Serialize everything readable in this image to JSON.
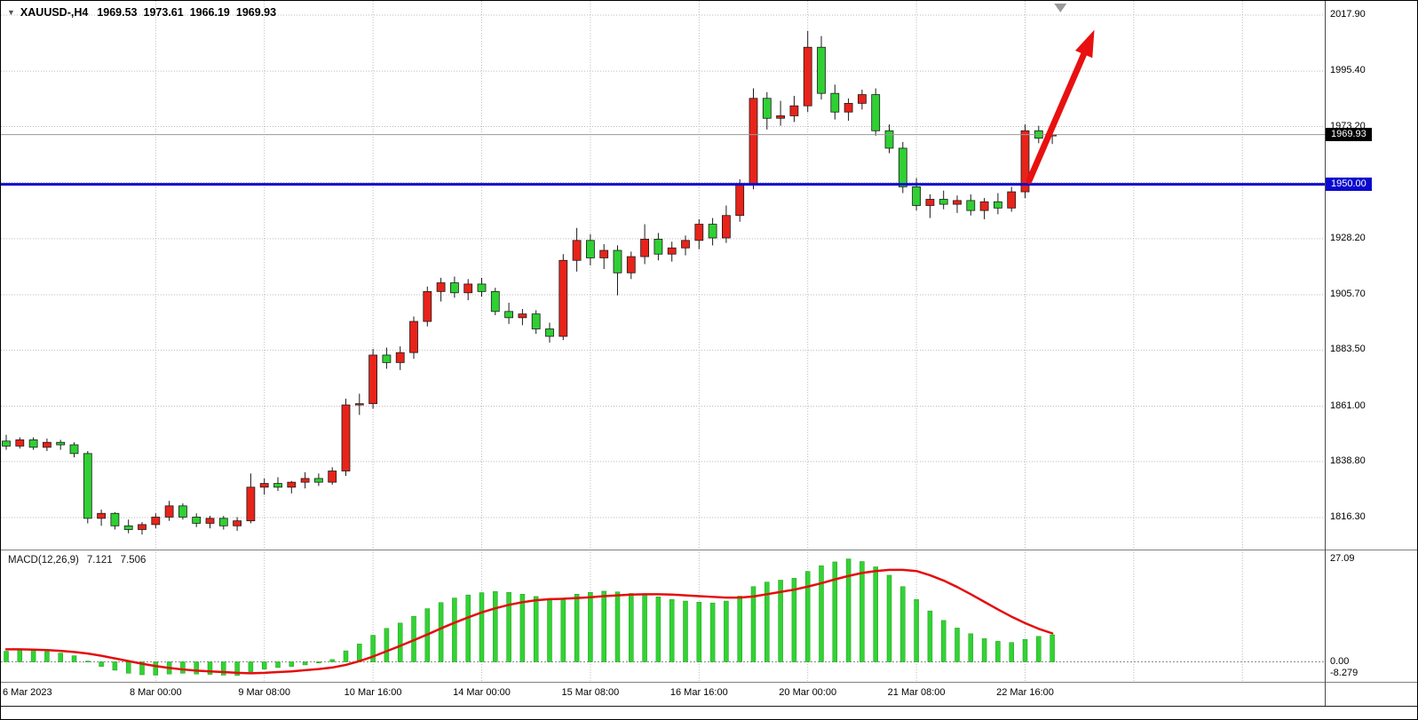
{
  "header": {
    "symbol": "XAUUSD-,H4",
    "open": "1969.53",
    "high": "1973.61",
    "low": "1966.19",
    "close": "1969.93"
  },
  "icons": {
    "symbol_dropdown": "▼"
  },
  "price_axis": {
    "bid_badge": {
      "text": "1969.93",
      "bg": "#000000",
      "price": 1969.93
    },
    "level_badge": {
      "text": "1950.00",
      "bg": "#0a0ace",
      "price": 1950.0
    }
  },
  "macd_panel": {
    "title": "MACD(12,26,9)",
    "main_value": "7.121",
    "signal_value": "7.506",
    "axis_max": "27.09",
    "axis_zero": "0.00",
    "axis_min": "-8.279"
  },
  "chart_data": {
    "type": "candlestick+macd",
    "symbol": "XAUUSD-",
    "timeframe": "H4",
    "colors": {
      "bull": "#e8231a",
      "bear": "#2fd033",
      "outline": "#1b1b1b",
      "grid": "#bbbbbb",
      "macd_histogram": "#33d235",
      "macd_histogram_edge": "#14a014",
      "macd_signal": "#e40d0d",
      "level_line": "#0a0ace",
      "bid_line": "#9a9a9a",
      "arrow": "#e81010"
    },
    "y_axis": {
      "ticks": [
        "2017.90",
        "1995.40",
        "1973.20",
        "1928.20",
        "1905.70",
        "1883.50",
        "1861.00",
        "1838.80",
        "1816.30"
      ],
      "extra_gridline": 1950.7
    },
    "x_axis": {
      "ticks": [
        {
          "label": "6 Mar 2023",
          "bar": 0
        },
        {
          "label": "8 Mar 00:00",
          "bar": 11
        },
        {
          "label": "9 Mar 08:00",
          "bar": 19
        },
        {
          "label": "10 Mar 16:00",
          "bar": 27
        },
        {
          "label": "14 Mar 00:00",
          "bar": 35
        },
        {
          "label": "15 Mar 08:00",
          "bar": 43
        },
        {
          "label": "16 Mar 16:00",
          "bar": 51
        },
        {
          "label": "20 Mar 00:00",
          "bar": 59
        },
        {
          "label": "21 Mar 08:00",
          "bar": 67
        },
        {
          "label": "22 Mar 16:00",
          "bar": 75
        }
      ],
      "extra_gridline_bars": [
        83,
        91
      ]
    },
    "candles_ohlc": [
      [
        1847,
        1849.5,
        1843.5,
        1845
      ],
      [
        1845,
        1848.5,
        1844,
        1847.5
      ],
      [
        1847.5,
        1848.5,
        1843.5,
        1844.5
      ],
      [
        1844.5,
        1848,
        1843,
        1846.5
      ],
      [
        1846.5,
        1847.5,
        1843.5,
        1845.5
      ],
      [
        1845.5,
        1846.5,
        1840.5,
        1842
      ],
      [
        1842,
        1843,
        1814,
        1816
      ],
      [
        1816,
        1819.5,
        1813,
        1818
      ],
      [
        1818,
        1818.5,
        1811.5,
        1813
      ],
      [
        1813,
        1815.5,
        1810,
        1811.5
      ],
      [
        1811.5,
        1814.5,
        1809.5,
        1813.5
      ],
      [
        1813.5,
        1818,
        1812,
        1816.5
      ],
      [
        1816.5,
        1823,
        1815,
        1821
      ],
      [
        1821,
        1822,
        1815.5,
        1816.5
      ],
      [
        1816.5,
        1818,
        1812.5,
        1814
      ],
      [
        1814,
        1817,
        1812,
        1816
      ],
      [
        1816,
        1817,
        1811.5,
        1813
      ],
      [
        1813,
        1816.5,
        1811,
        1815
      ],
      [
        1815,
        1834,
        1814,
        1828.5
      ],
      [
        1828.5,
        1832,
        1825.5,
        1830
      ],
      [
        1830,
        1832.5,
        1827,
        1828.5
      ],
      [
        1828.5,
        1831,
        1826,
        1830.5
      ],
      [
        1830.5,
        1834.5,
        1828,
        1832
      ],
      [
        1832,
        1834,
        1829,
        1830.5
      ],
      [
        1830.5,
        1836.5,
        1829.5,
        1835
      ],
      [
        1835,
        1864,
        1833,
        1861.5
      ],
      [
        1861.5,
        1866,
        1857.5,
        1862
      ],
      [
        1862,
        1884,
        1860,
        1881.5
      ],
      [
        1881.5,
        1884.5,
        1876,
        1878.5
      ],
      [
        1878.5,
        1885,
        1875.5,
        1882.5
      ],
      [
        1882.5,
        1897,
        1880,
        1895
      ],
      [
        1895,
        1909,
        1893,
        1907
      ],
      [
        1907,
        1912.5,
        1903,
        1910.5
      ],
      [
        1910.5,
        1913,
        1904.5,
        1906.5
      ],
      [
        1906.5,
        1912,
        1903.5,
        1910
      ],
      [
        1910,
        1912.5,
        1905,
        1907
      ],
      [
        1907,
        1908.5,
        1897.5,
        1899
      ],
      [
        1899,
        1902.5,
        1894,
        1896.5
      ],
      [
        1896.5,
        1900,
        1893.5,
        1898
      ],
      [
        1898,
        1899.5,
        1890,
        1892
      ],
      [
        1892,
        1894.5,
        1886.5,
        1889
      ],
      [
        1889,
        1922,
        1887.5,
        1919.5
      ],
      [
        1919.5,
        1932.5,
        1915,
        1927.5
      ],
      [
        1927.5,
        1930,
        1917.5,
        1920.5
      ],
      [
        1920.5,
        1926,
        1916,
        1923.5
      ],
      [
        1923.5,
        1925.5,
        1905.5,
        1914.5
      ],
      [
        1914.5,
        1923,
        1912,
        1921
      ],
      [
        1921,
        1934,
        1918,
        1928
      ],
      [
        1928,
        1930.5,
        1919.5,
        1922
      ],
      [
        1922,
        1927,
        1919,
        1924.5
      ],
      [
        1924.5,
        1929.5,
        1921.5,
        1927.5
      ],
      [
        1927.5,
        1936,
        1924,
        1934
      ],
      [
        1934,
        1936.5,
        1925.5,
        1928.5
      ],
      [
        1928.5,
        1941.5,
        1926.5,
        1937.5
      ],
      [
        1937.5,
        1952,
        1935,
        1950
      ],
      [
        1950,
        1988.5,
        1948,
        1984.5
      ],
      [
        1984.5,
        1987,
        1972,
        1976.5
      ],
      [
        1976.5,
        1983.5,
        1973.5,
        1977.5
      ],
      [
        1977.5,
        1985.5,
        1975,
        1981.5
      ],
      [
        1981.5,
        2011.5,
        1979,
        2005
      ],
      [
        2005,
        2009.5,
        1984,
        1986.5
      ],
      [
        1986.5,
        1990,
        1976,
        1979
      ],
      [
        1979,
        1984.5,
        1975.5,
        1982.5
      ],
      [
        1982.5,
        1988,
        1980,
        1986
      ],
      [
        1986,
        1988.5,
        1969.5,
        1971.5
      ],
      [
        1971.5,
        1974,
        1962.5,
        1964.5
      ],
      [
        1964.5,
        1967,
        1946.5,
        1949
      ],
      [
        1949,
        1952.5,
        1939.5,
        1941.5
      ],
      [
        1941.5,
        1946,
        1936.5,
        1944
      ],
      [
        1944,
        1947.5,
        1940,
        1942
      ],
      [
        1942,
        1945.5,
        1938.5,
        1943.5
      ],
      [
        1943.5,
        1946,
        1937.5,
        1939.5
      ],
      [
        1939.5,
        1944.5,
        1936,
        1943
      ],
      [
        1943,
        1946.5,
        1938,
        1940.5
      ],
      [
        1940.5,
        1949,
        1939,
        1947
      ],
      [
        1947,
        1974,
        1944.5,
        1971.5
      ],
      [
        1971.5,
        1973.5,
        1966.5,
        1968.5
      ],
      [
        1969.53,
        1973.61,
        1966.19,
        1969.93
      ]
    ],
    "macd": {
      "histogram": [
        2.8,
        3.1,
        3.0,
        2.7,
        2.3,
        1.6,
        0.2,
        -1.2,
        -2.2,
        -3.0,
        -3.4,
        -3.5,
        -3.2,
        -3.0,
        -3.2,
        -3.3,
        -3.5,
        -3.6,
        -2.6,
        -1.9,
        -1.5,
        -1.2,
        -0.8,
        -0.3,
        0.6,
        2.9,
        4.7,
        7.0,
        8.8,
        10.2,
        12.0,
        14.0,
        15.6,
        16.8,
        17.6,
        18.2,
        18.5,
        18.3,
        17.8,
        17.2,
        16.4,
        16.8,
        17.8,
        18.3,
        18.6,
        18.4,
        18.0,
        17.7,
        17.1,
        16.4,
        16.0,
        15.7,
        15.5,
        16.0,
        17.3,
        19.8,
        21.0,
        21.5,
        22.0,
        23.8,
        25.3,
        26.3,
        27.09,
        26.4,
        25.0,
        22.8,
        19.8,
        16.4,
        13.4,
        10.9,
        8.9,
        7.4,
        6.1,
        5.4,
        5.1,
        5.9,
        6.7,
        7.121
      ],
      "signal": [
        3.3,
        3.3,
        3.2,
        3.1,
        2.9,
        2.6,
        2.2,
        1.6,
        0.9,
        0.2,
        -0.5,
        -1.1,
        -1.6,
        -2.0,
        -2.3,
        -2.5,
        -2.7,
        -2.9,
        -3.0,
        -2.9,
        -2.7,
        -2.5,
        -2.2,
        -1.9,
        -1.5,
        -0.8,
        0.2,
        1.4,
        2.8,
        4.2,
        5.7,
        7.2,
        8.8,
        10.3,
        11.7,
        13.0,
        14.1,
        15.0,
        15.7,
        16.2,
        16.5,
        16.6,
        16.8,
        17.0,
        17.3,
        17.5,
        17.7,
        17.8,
        17.8,
        17.7,
        17.5,
        17.3,
        17.1,
        16.9,
        16.9,
        17.2,
        17.8,
        18.4,
        19.0,
        19.8,
        20.7,
        21.7,
        22.6,
        23.4,
        23.9,
        24.2,
        24.2,
        23.9,
        22.8,
        21.4,
        19.7,
        17.8,
        15.8,
        13.8,
        11.9,
        10.2,
        8.7,
        7.506
      ]
    },
    "annotations": {
      "horizontal_line": {
        "price": 1950.0
      },
      "bid_line_price": 1969.93,
      "trend_arrow": {
        "from_bar": 75.3,
        "from_price": 1951.5,
        "to_bar": 80.1,
        "to_price": 2012.0
      },
      "shift_marker_bar": 77.6
    }
  }
}
